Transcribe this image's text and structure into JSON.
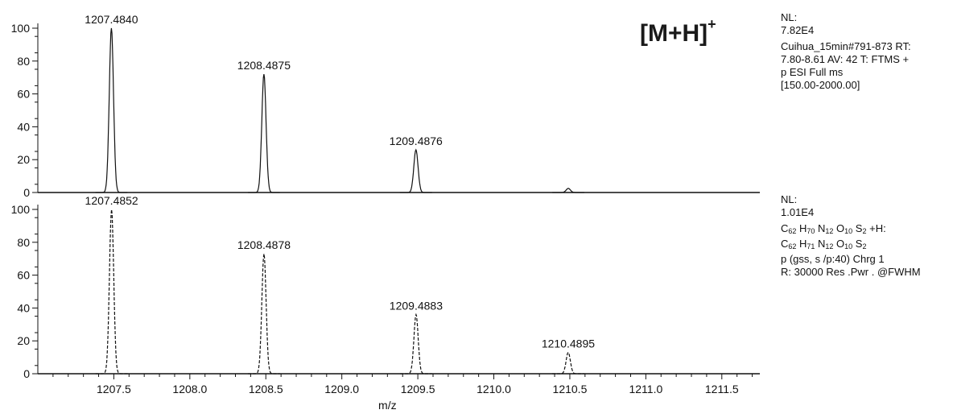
{
  "ion_label": {
    "text": "[M+H]",
    "superscript": "+"
  },
  "top_panel": {
    "info": {
      "nl_label": "NL:",
      "nl_value": "7.82E4",
      "lines": [
        "Cuihua_15min#791-873  RT:",
        "7.80-8.61  AV: 42 T: FTMS +",
        "p ESI Full ms",
        "[150.00-2000.00]"
      ]
    }
  },
  "bottom_panel": {
    "info": {
      "nl_label": "NL:",
      "nl_value": "1.01E4",
      "formula_lines": [
        [
          {
            "t": "C"
          },
          {
            "s": "62"
          },
          {
            "t": " H"
          },
          {
            "s": "70"
          },
          {
            "t": " N"
          },
          {
            "s": "12"
          },
          {
            "t": " O"
          },
          {
            "s": "10"
          },
          {
            "t": " S"
          },
          {
            "s": "2"
          },
          {
            "t": " +H:"
          }
        ],
        [
          {
            "t": "C"
          },
          {
            "s": "62"
          },
          {
            "t": " H"
          },
          {
            "s": "71"
          },
          {
            "t": " N"
          },
          {
            "s": "12"
          },
          {
            "t": " O"
          },
          {
            "s": "10"
          },
          {
            "t": " S"
          },
          {
            "s": "2"
          }
        ]
      ],
      "lines": [
        "p (gss, s /p:40) Chrg 1",
        "R: 30000 Res .Pwr . @FWHM"
      ]
    }
  },
  "chart_data": [
    {
      "type": "line",
      "panel": "top",
      "title": "",
      "ylabel": "",
      "xlim": [
        1207.0,
        1211.75
      ],
      "ylim": [
        0,
        100
      ],
      "yticks": [
        0,
        20,
        40,
        60,
        80,
        100
      ],
      "style": "solid",
      "peaks": [
        {
          "x": 1207.484,
          "y": 100,
          "label": "1207.4840"
        },
        {
          "x": 1208.4875,
          "y": 72,
          "label": "1208.4875"
        },
        {
          "x": 1209.4876,
          "y": 26,
          "label": "1209.4876"
        },
        {
          "x": 1210.49,
          "y": 2.5,
          "label": ""
        }
      ]
    },
    {
      "type": "line",
      "panel": "bottom",
      "title": "",
      "xlabel": "m/z",
      "xlim": [
        1207.0,
        1211.75
      ],
      "ylim": [
        0,
        100
      ],
      "yticks": [
        0,
        20,
        40,
        60,
        80,
        100
      ],
      "xticks": [
        "1207.5",
        "1208.0",
        "1208.5",
        "1209.0",
        "1209.5",
        "1210.0",
        "1210.5",
        "1211.0",
        "1211.5"
      ],
      "style": "dashed",
      "peaks": [
        {
          "x": 1207.4852,
          "y": 100,
          "label": "1207.4852"
        },
        {
          "x": 1208.4878,
          "y": 73,
          "label": "1208.4878"
        },
        {
          "x": 1209.4883,
          "y": 36,
          "label": "1209.4883"
        },
        {
          "x": 1210.4895,
          "y": 13,
          "label": "1210.4895"
        }
      ]
    }
  ]
}
